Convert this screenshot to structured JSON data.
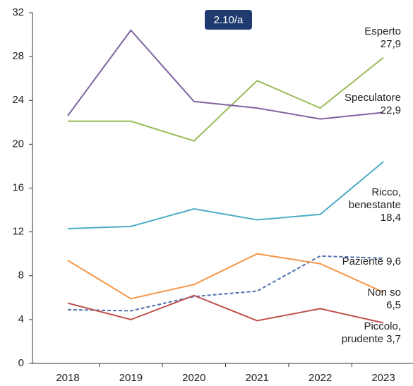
{
  "chart_data": {
    "type": "line",
    "badge": "2.10/a",
    "categories": [
      "2018",
      "2019",
      "2020",
      "2021",
      "2022",
      "2023"
    ],
    "ylim": [
      0,
      32
    ],
    "yticks": [
      0,
      4,
      8,
      12,
      16,
      20,
      24,
      28,
      32
    ],
    "series": [
      {
        "name": "Esperto",
        "color": "#9bbb59",
        "values": [
          22.1,
          22.1,
          20.3,
          25.8,
          23.3,
          27.9
        ],
        "value_labels": [
          null,
          null,
          null,
          null,
          null,
          "27,9"
        ]
      },
      {
        "name": "Speculatore",
        "color": "#8064a2",
        "values": [
          22.6,
          30.4,
          23.9,
          23.3,
          22.3,
          22.9
        ],
        "value_labels": [
          null,
          null,
          null,
          null,
          null,
          "22,9"
        ]
      },
      {
        "name": "Ricco, benestante",
        "color": "#4bacc6",
        "values": [
          12.3,
          12.5,
          14.1,
          13.1,
          13.6,
          18.4
        ],
        "value_labels": [
          null,
          null,
          null,
          null,
          null,
          "18,4"
        ]
      },
      {
        "name": "Paziente",
        "color": "#4f6fb0",
        "dashed": true,
        "values": [
          4.9,
          4.8,
          6.1,
          6.6,
          9.8,
          9.6
        ],
        "value_labels": [
          null,
          null,
          null,
          null,
          null,
          "9,6"
        ]
      },
      {
        "name": "Non so",
        "color": "#f79646",
        "values": [
          9.4,
          5.9,
          7.2,
          10.0,
          9.1,
          6.5
        ],
        "value_labels": [
          null,
          null,
          null,
          null,
          null,
          "6,5"
        ]
      },
      {
        "name": "Piccolo, prudente",
        "color": "#c0504d",
        "values": [
          5.5,
          4.0,
          6.2,
          3.9,
          5.0,
          3.7
        ],
        "value_labels": [
          null,
          null,
          null,
          null,
          null,
          "3,7"
        ]
      }
    ]
  }
}
